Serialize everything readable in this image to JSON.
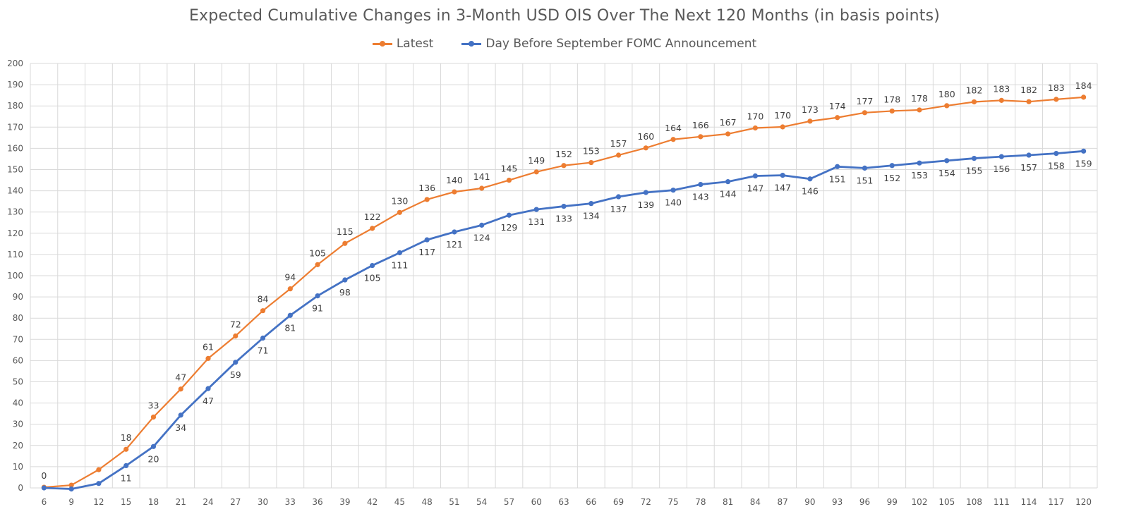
{
  "chart_data": {
    "type": "line",
    "title": "Expected Cumulative Changes in 3-Month USD OIS Over The Next 120 Months (in basis points)",
    "xlabel": "",
    "ylabel": "",
    "ylim": [
      0,
      200
    ],
    "ytick_step": 10,
    "grid": true,
    "legend_position": "top-center",
    "categories": [
      "6",
      "9",
      "12",
      "15",
      "18",
      "21",
      "24",
      "27",
      "30",
      "33",
      "36",
      "39",
      "42",
      "45",
      "48",
      "51",
      "54",
      "57",
      "60",
      "63",
      "66",
      "69",
      "72",
      "75",
      "78",
      "81",
      "84",
      "87",
      "90",
      "93",
      "96",
      "99",
      "102",
      "105",
      "108",
      "111",
      "114",
      "117",
      "120"
    ],
    "series": [
      {
        "name": "Latest",
        "color": "#ED7D31",
        "label_position": "above",
        "values": [
          0.3,
          1.3,
          8.6,
          18.2,
          33.4,
          46.6,
          61.0,
          71.6,
          83.5,
          93.8,
          105.2,
          115.2,
          122.3,
          129.8,
          135.9,
          139.5,
          141.2,
          145.0,
          148.9,
          151.9,
          153.3,
          156.8,
          160.2,
          164.2,
          165.5,
          166.8,
          169.6,
          170.1,
          172.8,
          174.5,
          176.8,
          177.6,
          178.1,
          180.1,
          181.9,
          182.6,
          182.0,
          183.1,
          184.1
        ],
        "labels": [
          "0",
          "",
          "",
          "18",
          "33",
          "47",
          "61",
          "72",
          "84",
          "94",
          "105",
          "115",
          "122",
          "130",
          "136",
          "140",
          "141",
          "145",
          "149",
          "152",
          "153",
          "157",
          "160",
          "164",
          "166",
          "167",
          "170",
          "170",
          "173",
          "174",
          "177",
          "178",
          "178",
          "180",
          "182",
          "183",
          "182",
          "183",
          "184"
        ]
      },
      {
        "name": "Day Before September FOMC Announcement",
        "color": "#4472C4",
        "label_position": "below",
        "values": [
          0.0,
          -0.5,
          2.1,
          10.5,
          19.5,
          34.3,
          46.8,
          59.2,
          70.6,
          81.3,
          90.5,
          98.0,
          104.8,
          110.8,
          116.9,
          120.6,
          123.8,
          128.5,
          131.2,
          132.7,
          134.0,
          137.2,
          139.2,
          140.3,
          143.0,
          144.3,
          147.0,
          147.3,
          145.6,
          151.4,
          150.7,
          151.9,
          153.1,
          154.2,
          155.3,
          156.1,
          156.8,
          157.6,
          158.7
        ],
        "labels": [
          "",
          "",
          "",
          "11",
          "20",
          "34",
          "47",
          "59",
          "71",
          "81",
          "91",
          "98",
          "105",
          "111",
          "117",
          "121",
          "124",
          "129",
          "131",
          "133",
          "134",
          "137",
          "139",
          "140",
          "143",
          "144",
          "147",
          "147",
          "146",
          "151",
          "151",
          "152",
          "153",
          "154",
          "155",
          "156",
          "157",
          "158",
          "159"
        ]
      }
    ]
  }
}
